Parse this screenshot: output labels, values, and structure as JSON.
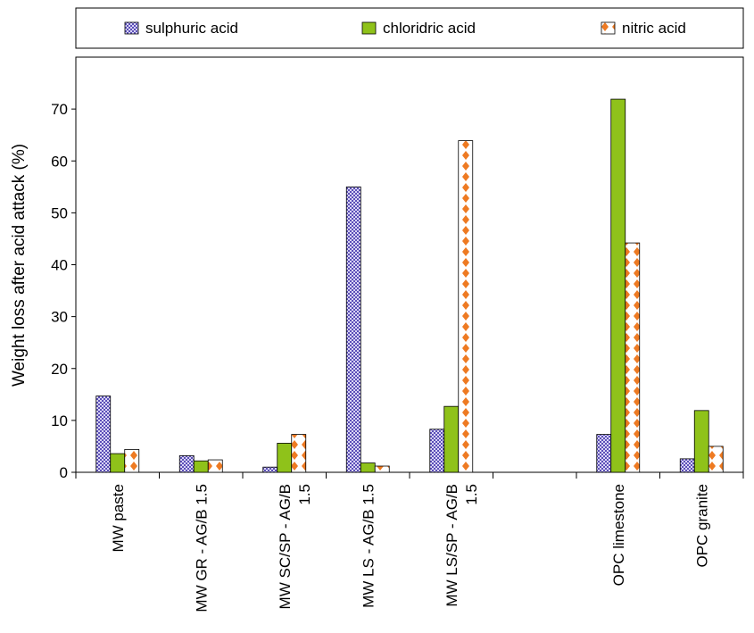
{
  "chart_data": {
    "type": "bar",
    "ylabel": "Weight loss after acid attack (%)",
    "ylim": [
      0,
      80
    ],
    "yticks": [
      0,
      10,
      20,
      30,
      40,
      50,
      60,
      70
    ],
    "grid": false,
    "legend_position": "top",
    "categories": [
      [
        "MW paste"
      ],
      [
        "MW GR - AG/B 1.5"
      ],
      [
        "MW SC/SP - AG/B",
        "1.5"
      ],
      [
        "MW LS - AG/B 1.5"
      ],
      [
        "MW LS/SP - AG/B",
        "1.5"
      ],
      [
        ""
      ],
      [
        "OPC limestone"
      ],
      [
        "OPC granite"
      ]
    ],
    "series": [
      {
        "name": "sulphuric acid",
        "color": "#5b4fb8",
        "pattern": "checker",
        "values": [
          14.7,
          3.2,
          1.0,
          55.0,
          8.3,
          null,
          7.3,
          2.6
        ]
      },
      {
        "name": "chloridric acid",
        "color": "#8fc21a",
        "pattern": "solid",
        "values": [
          3.6,
          2.2,
          5.6,
          1.8,
          12.7,
          null,
          71.9,
          11.9
        ]
      },
      {
        "name": "nitric acid",
        "color": "#ee7a22",
        "pattern": "diamond",
        "values": [
          4.4,
          2.4,
          7.3,
          1.2,
          63.9,
          null,
          44.2,
          5.0
        ]
      }
    ]
  }
}
